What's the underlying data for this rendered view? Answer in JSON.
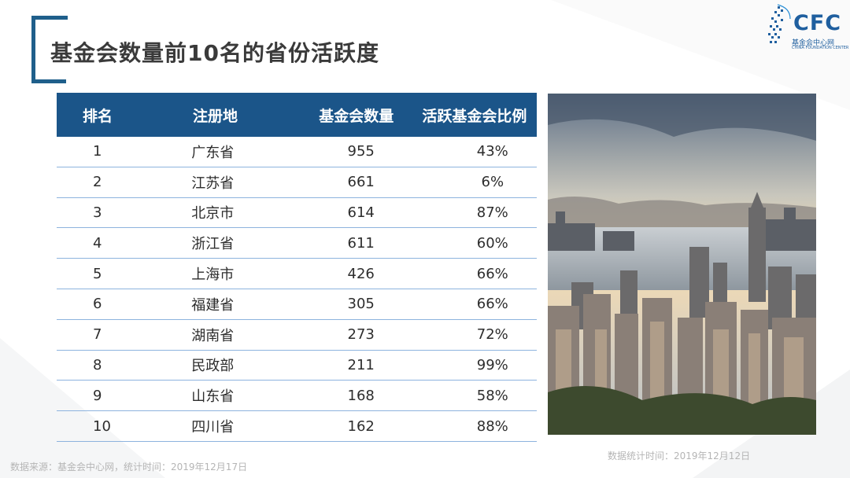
{
  "slide": {
    "title": "基金会数量前10名的省份活跃度",
    "photo_note": "数据统计时间：2019年12月12日",
    "source_note": "数据来源：基金会中心网，统计时间：2019年12月17日"
  },
  "logo": {
    "text": "CFC",
    "cn": "基金会中心网",
    "en": "CHINA FOUNDATION CENTER",
    "color": "#1f5f9f"
  },
  "table": {
    "headers": [
      "排名",
      "注册地",
      "基金会数量",
      "活跃基金会比例"
    ],
    "rows": [
      [
        "1",
        "广东省",
        "955",
        "43%"
      ],
      [
        "2",
        "江苏省",
        "661",
        "6%"
      ],
      [
        "3",
        "北京市",
        "614",
        "87%"
      ],
      [
        "4",
        "浙江省",
        "611",
        "60%"
      ],
      [
        "5",
        "上海市",
        "426",
        "66%"
      ],
      [
        "6",
        "福建省",
        "305",
        "66%"
      ],
      [
        "7",
        "湖南省",
        "273",
        "72%"
      ],
      [
        "8",
        "民政部",
        "211",
        "99%"
      ],
      [
        "9",
        "山东省",
        "168",
        "58%"
      ],
      [
        "10",
        "四川省",
        "162",
        "88%"
      ]
    ],
    "header_color": "#1b5589",
    "divider_color": "#8db3de"
  },
  "photo": {
    "icon": "city-skyline-photo"
  }
}
